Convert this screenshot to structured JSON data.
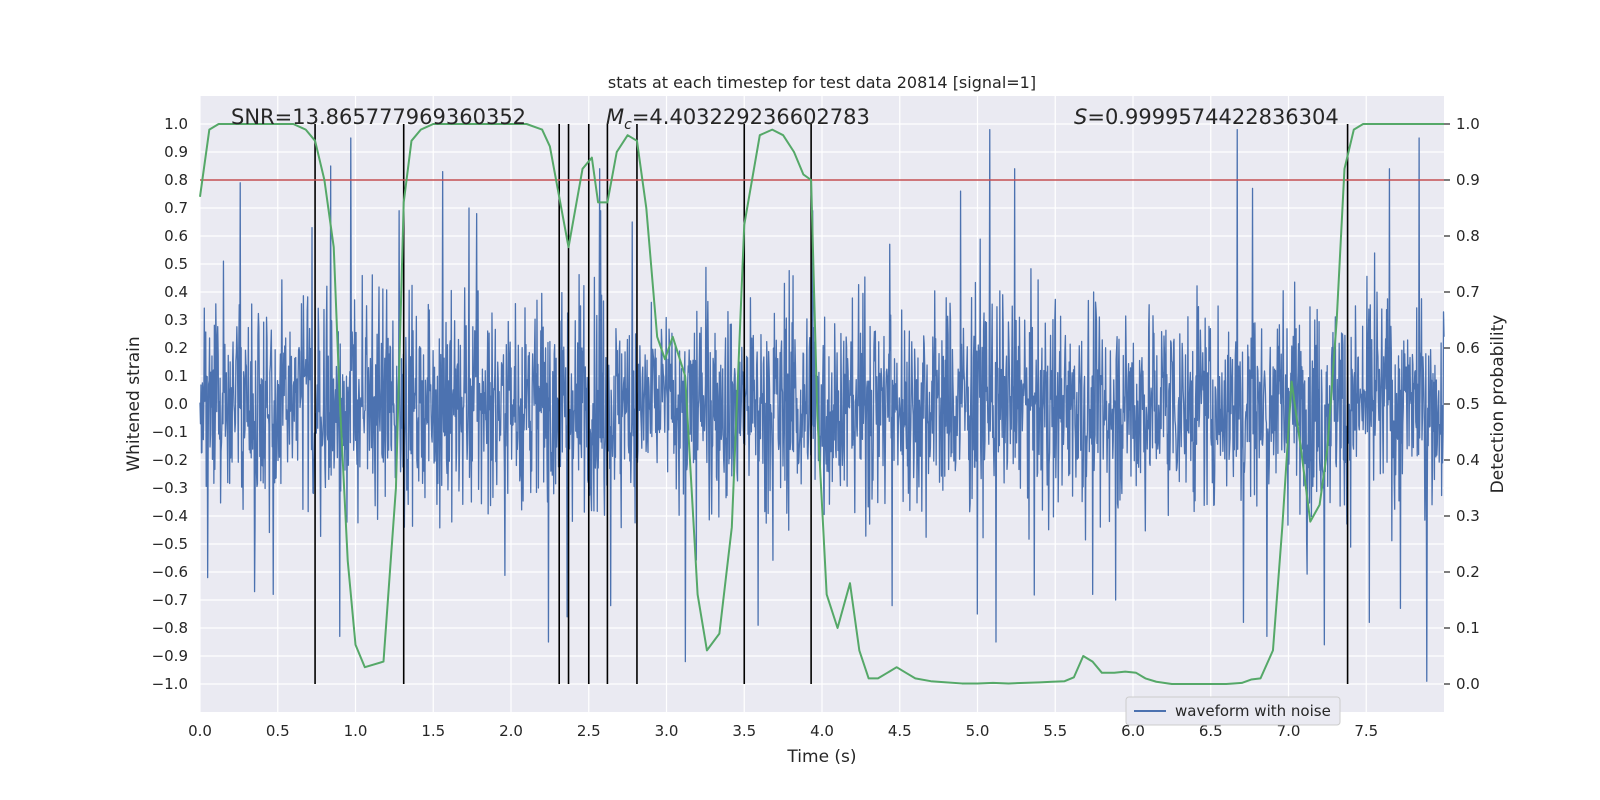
{
  "chart_data": {
    "type": "line",
    "title": "stats at each timestep for test data 20814 [signal=1]",
    "xlabel": "Time (s)",
    "ylabel_left": "Whitened strain",
    "ylabel_right": "Detection probability",
    "xlim": [
      0,
      8.0
    ],
    "ylim_left": [
      -1.1,
      1.1
    ],
    "ylim_right": [
      -0.05,
      1.05
    ],
    "x_ticks": [
      0.0,
      0.5,
      1.0,
      1.5,
      2.0,
      2.5,
      3.0,
      3.5,
      4.0,
      4.5,
      5.0,
      5.5,
      6.0,
      6.5,
      7.0,
      7.5
    ],
    "x_tick_labels": [
      "0.0",
      "0.5",
      "1.0",
      "1.5",
      "2.0",
      "2.5",
      "3.0",
      "3.5",
      "4.0",
      "4.5",
      "5.0",
      "5.5",
      "6.0",
      "6.5",
      "7.0",
      "7.5"
    ],
    "y_left_ticks": [
      1.0,
      0.9,
      0.8,
      0.7,
      0.6,
      0.5,
      0.4,
      0.3,
      0.2,
      0.1,
      0.0,
      -0.1,
      -0.2,
      -0.3,
      -0.4,
      -0.5,
      -0.6,
      -0.7,
      -0.8,
      -0.9,
      -1.0
    ],
    "y_left_tick_labels": [
      "1.0",
      "0.9",
      "0.8",
      "0.7",
      "0.6",
      "0.5",
      "0.4",
      "0.3",
      "0.2",
      "0.1",
      "0.0",
      "−0.1",
      "−0.2",
      "−0.3",
      "−0.4",
      "−0.5",
      "−0.6",
      "−0.7",
      "−0.8",
      "−0.9",
      "−1.0"
    ],
    "y_right_ticks": [
      1.0,
      0.9,
      0.8,
      0.7,
      0.6,
      0.5,
      0.4,
      0.3,
      0.2,
      0.1,
      0.0
    ],
    "y_right_tick_labels": [
      "1.0",
      "0.9",
      "0.8",
      "0.7",
      "0.6",
      "0.5",
      "0.4",
      "0.3",
      "0.2",
      "0.1",
      "0.0"
    ],
    "annotations": {
      "snr": "SNR=13.865777969360352",
      "mc_symbol": "M",
      "mc_sub": "c",
      "mc_value": "=4.403229236602783",
      "s_symbol": "S",
      "s_value": "=0.9999574422836304"
    },
    "legend": {
      "label": "waveform with noise",
      "position": "lower-right"
    },
    "threshold": {
      "value": 0.9,
      "axis": "right",
      "color": "#c44e52"
    },
    "event_markers": {
      "times": [
        0.74,
        1.31,
        2.31,
        2.37,
        2.5,
        2.62,
        2.81,
        3.5,
        3.93,
        7.38
      ],
      "ymin": -1.0,
      "ymax": 1.0,
      "color": "#000000"
    },
    "series": [
      {
        "name": "waveform with noise",
        "axis": "left",
        "color": "#4c72b0",
        "style": "dense-noise",
        "t_start": 0.0,
        "t_end": 8.0,
        "samples": 2600,
        "band_sigma": 0.18,
        "extremes": [
          {
            "t": 0.05,
            "v": -0.62
          },
          {
            "t": 0.15,
            "v": 0.51
          },
          {
            "t": 0.26,
            "v": 0.79
          },
          {
            "t": 0.35,
            "v": -0.67
          },
          {
            "t": 0.47,
            "v": -0.68
          },
          {
            "t": 0.72,
            "v": 0.63
          },
          {
            "t": 0.84,
            "v": 0.85
          },
          {
            "t": 0.9,
            "v": -0.83
          },
          {
            "t": 0.97,
            "v": 0.95
          },
          {
            "t": 1.28,
            "v": 0.69
          },
          {
            "t": 1.56,
            "v": 0.83
          },
          {
            "t": 1.78,
            "v": 0.68
          },
          {
            "t": 2.24,
            "v": -0.85
          },
          {
            "t": 2.36,
            "v": -0.76
          },
          {
            "t": 2.57,
            "v": 0.84
          },
          {
            "t": 2.64,
            "v": -0.72
          },
          {
            "t": 2.78,
            "v": 0.65
          },
          {
            "t": 3.12,
            "v": -0.92
          },
          {
            "t": 3.59,
            "v": -0.79
          },
          {
            "t": 3.94,
            "v": 0.69
          },
          {
            "t": 4.45,
            "v": -0.72
          },
          {
            "t": 4.89,
            "v": 0.76
          },
          {
            "t": 5.0,
            "v": -0.75
          },
          {
            "t": 5.08,
            "v": 0.98
          },
          {
            "t": 5.12,
            "v": -0.85
          },
          {
            "t": 5.24,
            "v": 0.84
          },
          {
            "t": 5.74,
            "v": -0.68
          },
          {
            "t": 6.67,
            "v": 0.98
          },
          {
            "t": 6.71,
            "v": -0.78
          },
          {
            "t": 6.77,
            "v": 0.77
          },
          {
            "t": 6.86,
            "v": -0.83
          },
          {
            "t": 7.23,
            "v": -0.86
          },
          {
            "t": 7.52,
            "v": -0.78
          },
          {
            "t": 7.65,
            "v": 0.84
          },
          {
            "t": 7.72,
            "v": -0.73
          },
          {
            "t": 7.84,
            "v": 0.95
          },
          {
            "t": 7.89,
            "v": -0.99
          }
        ]
      },
      {
        "name": "Detection probability",
        "axis": "right",
        "color": "#55a868",
        "t": [
          0.0,
          0.06,
          0.12,
          0.2,
          0.3,
          0.4,
          0.5,
          0.6,
          0.68,
          0.74,
          0.8,
          0.86,
          0.9,
          0.95,
          1.0,
          1.06,
          1.18,
          1.26,
          1.31,
          1.36,
          1.42,
          1.5,
          1.6,
          1.8,
          2.0,
          2.1,
          2.2,
          2.25,
          2.31,
          2.37,
          2.46,
          2.52,
          2.56,
          2.62,
          2.68,
          2.75,
          2.81,
          2.87,
          2.94,
          2.99,
          3.04,
          3.12,
          3.2,
          3.26,
          3.34,
          3.42,
          3.5,
          3.6,
          3.68,
          3.75,
          3.82,
          3.88,
          3.93,
          3.97,
          4.03,
          4.1,
          4.18,
          4.24,
          4.3,
          4.36,
          4.42,
          4.48,
          4.54,
          4.6,
          4.7,
          4.8,
          4.9,
          5.0,
          5.1,
          5.2,
          5.3,
          5.4,
          5.48,
          5.56,
          5.62,
          5.68,
          5.74,
          5.8,
          5.88,
          5.95,
          6.02,
          6.08,
          6.15,
          6.25,
          6.35,
          6.5,
          6.6,
          6.7,
          6.76,
          6.82,
          6.9,
          6.96,
          7.02,
          7.08,
          7.14,
          7.2,
          7.25,
          7.31,
          7.36,
          7.42,
          7.48,
          7.56,
          7.62,
          7.7,
          7.8,
          7.9,
          8.0
        ],
        "p": [
          0.87,
          0.99,
          1.0,
          1.0,
          1.0,
          1.0,
          1.0,
          1.0,
          0.99,
          0.97,
          0.9,
          0.78,
          0.5,
          0.22,
          0.07,
          0.03,
          0.04,
          0.35,
          0.86,
          0.97,
          0.99,
          1.0,
          1.0,
          1.0,
          1.0,
          1.0,
          0.99,
          0.96,
          0.87,
          0.78,
          0.92,
          0.94,
          0.86,
          0.86,
          0.95,
          0.98,
          0.97,
          0.85,
          0.62,
          0.58,
          0.62,
          0.55,
          0.16,
          0.06,
          0.09,
          0.28,
          0.82,
          0.98,
          0.99,
          0.98,
          0.95,
          0.91,
          0.9,
          0.48,
          0.16,
          0.1,
          0.18,
          0.06,
          0.01,
          0.01,
          0.02,
          0.03,
          0.02,
          0.01,
          0.005,
          0.003,
          0.001,
          0.001,
          0.002,
          0.001,
          0.002,
          0.003,
          0.004,
          0.005,
          0.012,
          0.05,
          0.04,
          0.02,
          0.02,
          0.022,
          0.02,
          0.01,
          0.004,
          0.0,
          0.0,
          0.0,
          0.0,
          0.002,
          0.008,
          0.01,
          0.06,
          0.28,
          0.54,
          0.42,
          0.29,
          0.32,
          0.42,
          0.65,
          0.92,
          0.99,
          1.0,
          1.0,
          1.0,
          1.0,
          1.0,
          1.0,
          1.0
        ]
      }
    ]
  }
}
